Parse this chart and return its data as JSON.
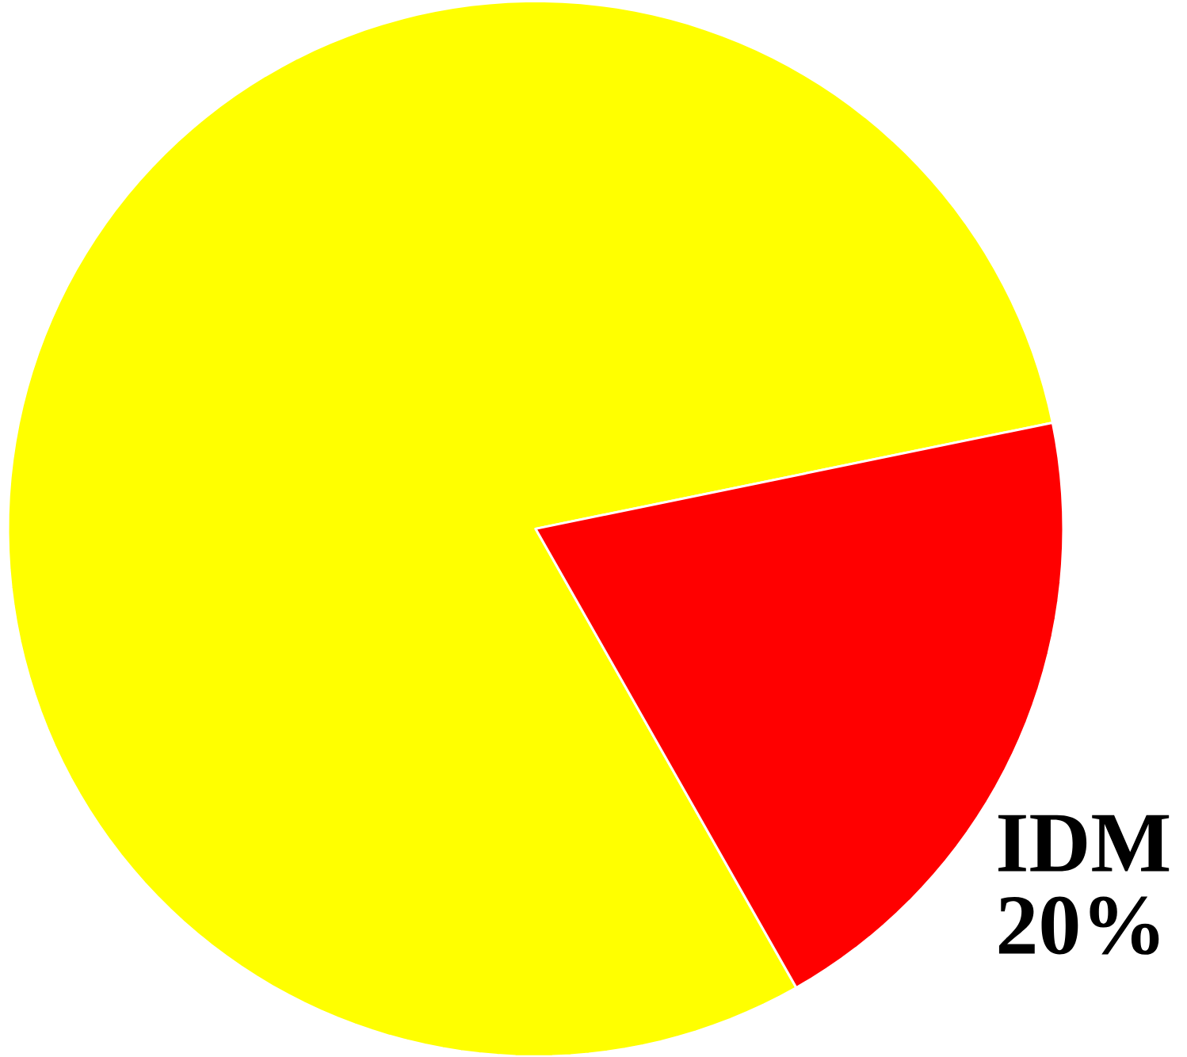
{
  "chart_data": {
    "type": "pie",
    "categories": [
      null,
      "IDM"
    ],
    "values": [
      80,
      20
    ],
    "colors": [
      "#ffff00",
      "#ff0000"
    ],
    "value_labels": [
      null,
      "20%"
    ]
  }
}
